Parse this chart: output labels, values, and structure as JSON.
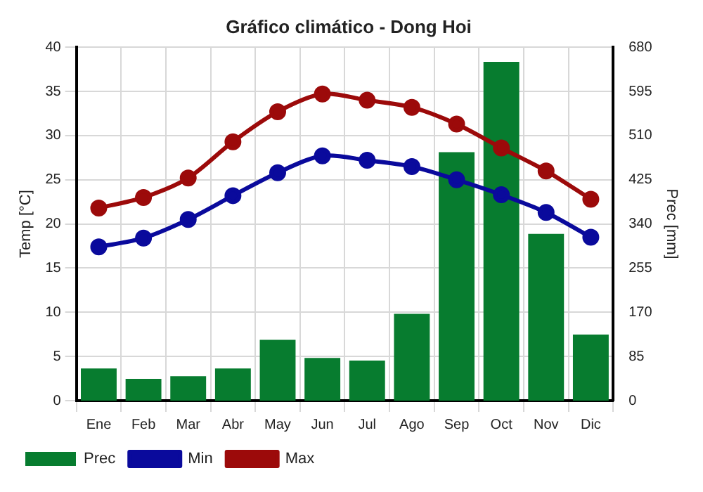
{
  "chart_data": {
    "type": "bar",
    "title": "Gráfico climático - Dong Hoi",
    "ylabel": "Temp [°C]",
    "y2label": "Prec [mm]",
    "categories": [
      "Ene",
      "Feb",
      "Mar",
      "Abr",
      "May",
      "Jun",
      "Jul",
      "Ago",
      "Sep",
      "Oct",
      "Nov",
      "Dic"
    ],
    "series": [
      {
        "name": "Prec",
        "axis": "y2",
        "color": "#077c2f",
        "values": [
          62,
          42,
          47,
          62,
          117,
          82,
          77,
          167,
          478,
          652,
          321,
          127
        ]
      },
      {
        "name": "Min",
        "type": "line",
        "color": "#0a0a9c",
        "marker": "circle",
        "values": [
          17.4,
          18.4,
          20.5,
          23.2,
          25.8,
          27.7,
          27.2,
          26.5,
          25,
          23.3,
          21.3,
          18.5
        ]
      },
      {
        "name": "Max",
        "type": "line",
        "color": "#9c0a0a",
        "marker": "circle",
        "values": [
          21.8,
          23,
          25.2,
          29.3,
          32.7,
          34.7,
          34,
          33.2,
          31.3,
          28.6,
          26,
          22.8
        ]
      }
    ],
    "ylim": [
      0,
      40
    ],
    "yticks": [
      0,
      5,
      10,
      15,
      20,
      25,
      30,
      35,
      40
    ],
    "y2lim": [
      0,
      680
    ],
    "y2ticks": [
      0,
      85,
      170,
      255,
      340,
      425,
      510,
      595,
      680
    ],
    "grid": true,
    "legend": "bottom left"
  }
}
